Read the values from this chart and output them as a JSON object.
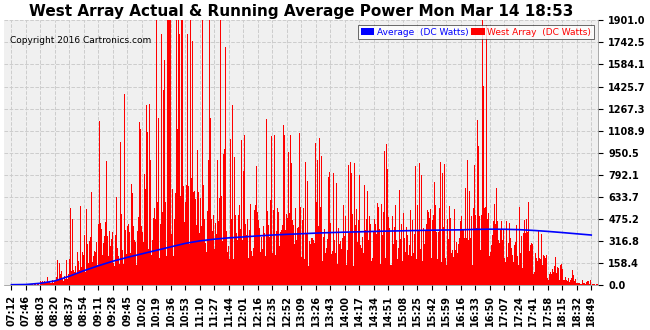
{
  "title": "West Array Actual & Running Average Power Mon Mar 14 18:53",
  "copyright": "Copyright 2016 Cartronics.com",
  "legend_avg": "Average  (DC Watts)",
  "legend_west": "West Array  (DC Watts)",
  "ylabel_values": [
    0.0,
    158.4,
    316.8,
    475.2,
    633.7,
    792.1,
    950.5,
    1108.9,
    1267.3,
    1425.7,
    1584.1,
    1742.5,
    1901.0
  ],
  "ymax": 1901.0,
  "ymin": 0.0,
  "background_color": "#ffffff",
  "plot_bg_color": "#f0f0f0",
  "grid_color": "#cccccc",
  "red_color": "#ff0000",
  "blue_color": "#0000ff",
  "title_fontsize": 11,
  "tick_fontsize": 7,
  "x_labels": [
    "07:12",
    "07:46",
    "08:03",
    "08:20",
    "08:37",
    "08:54",
    "09:11",
    "09:28",
    "09:45",
    "10:02",
    "10:19",
    "10:36",
    "10:53",
    "11:10",
    "11:27",
    "11:44",
    "12:01",
    "12:16",
    "12:35",
    "12:52",
    "13:09",
    "13:26",
    "13:43",
    "14:00",
    "14:17",
    "14:34",
    "14:51",
    "15:08",
    "15:25",
    "15:42",
    "15:59",
    "16:16",
    "16:33",
    "16:50",
    "17:07",
    "17:24",
    "17:41",
    "17:58",
    "18:15",
    "18:32",
    "18:49"
  ]
}
